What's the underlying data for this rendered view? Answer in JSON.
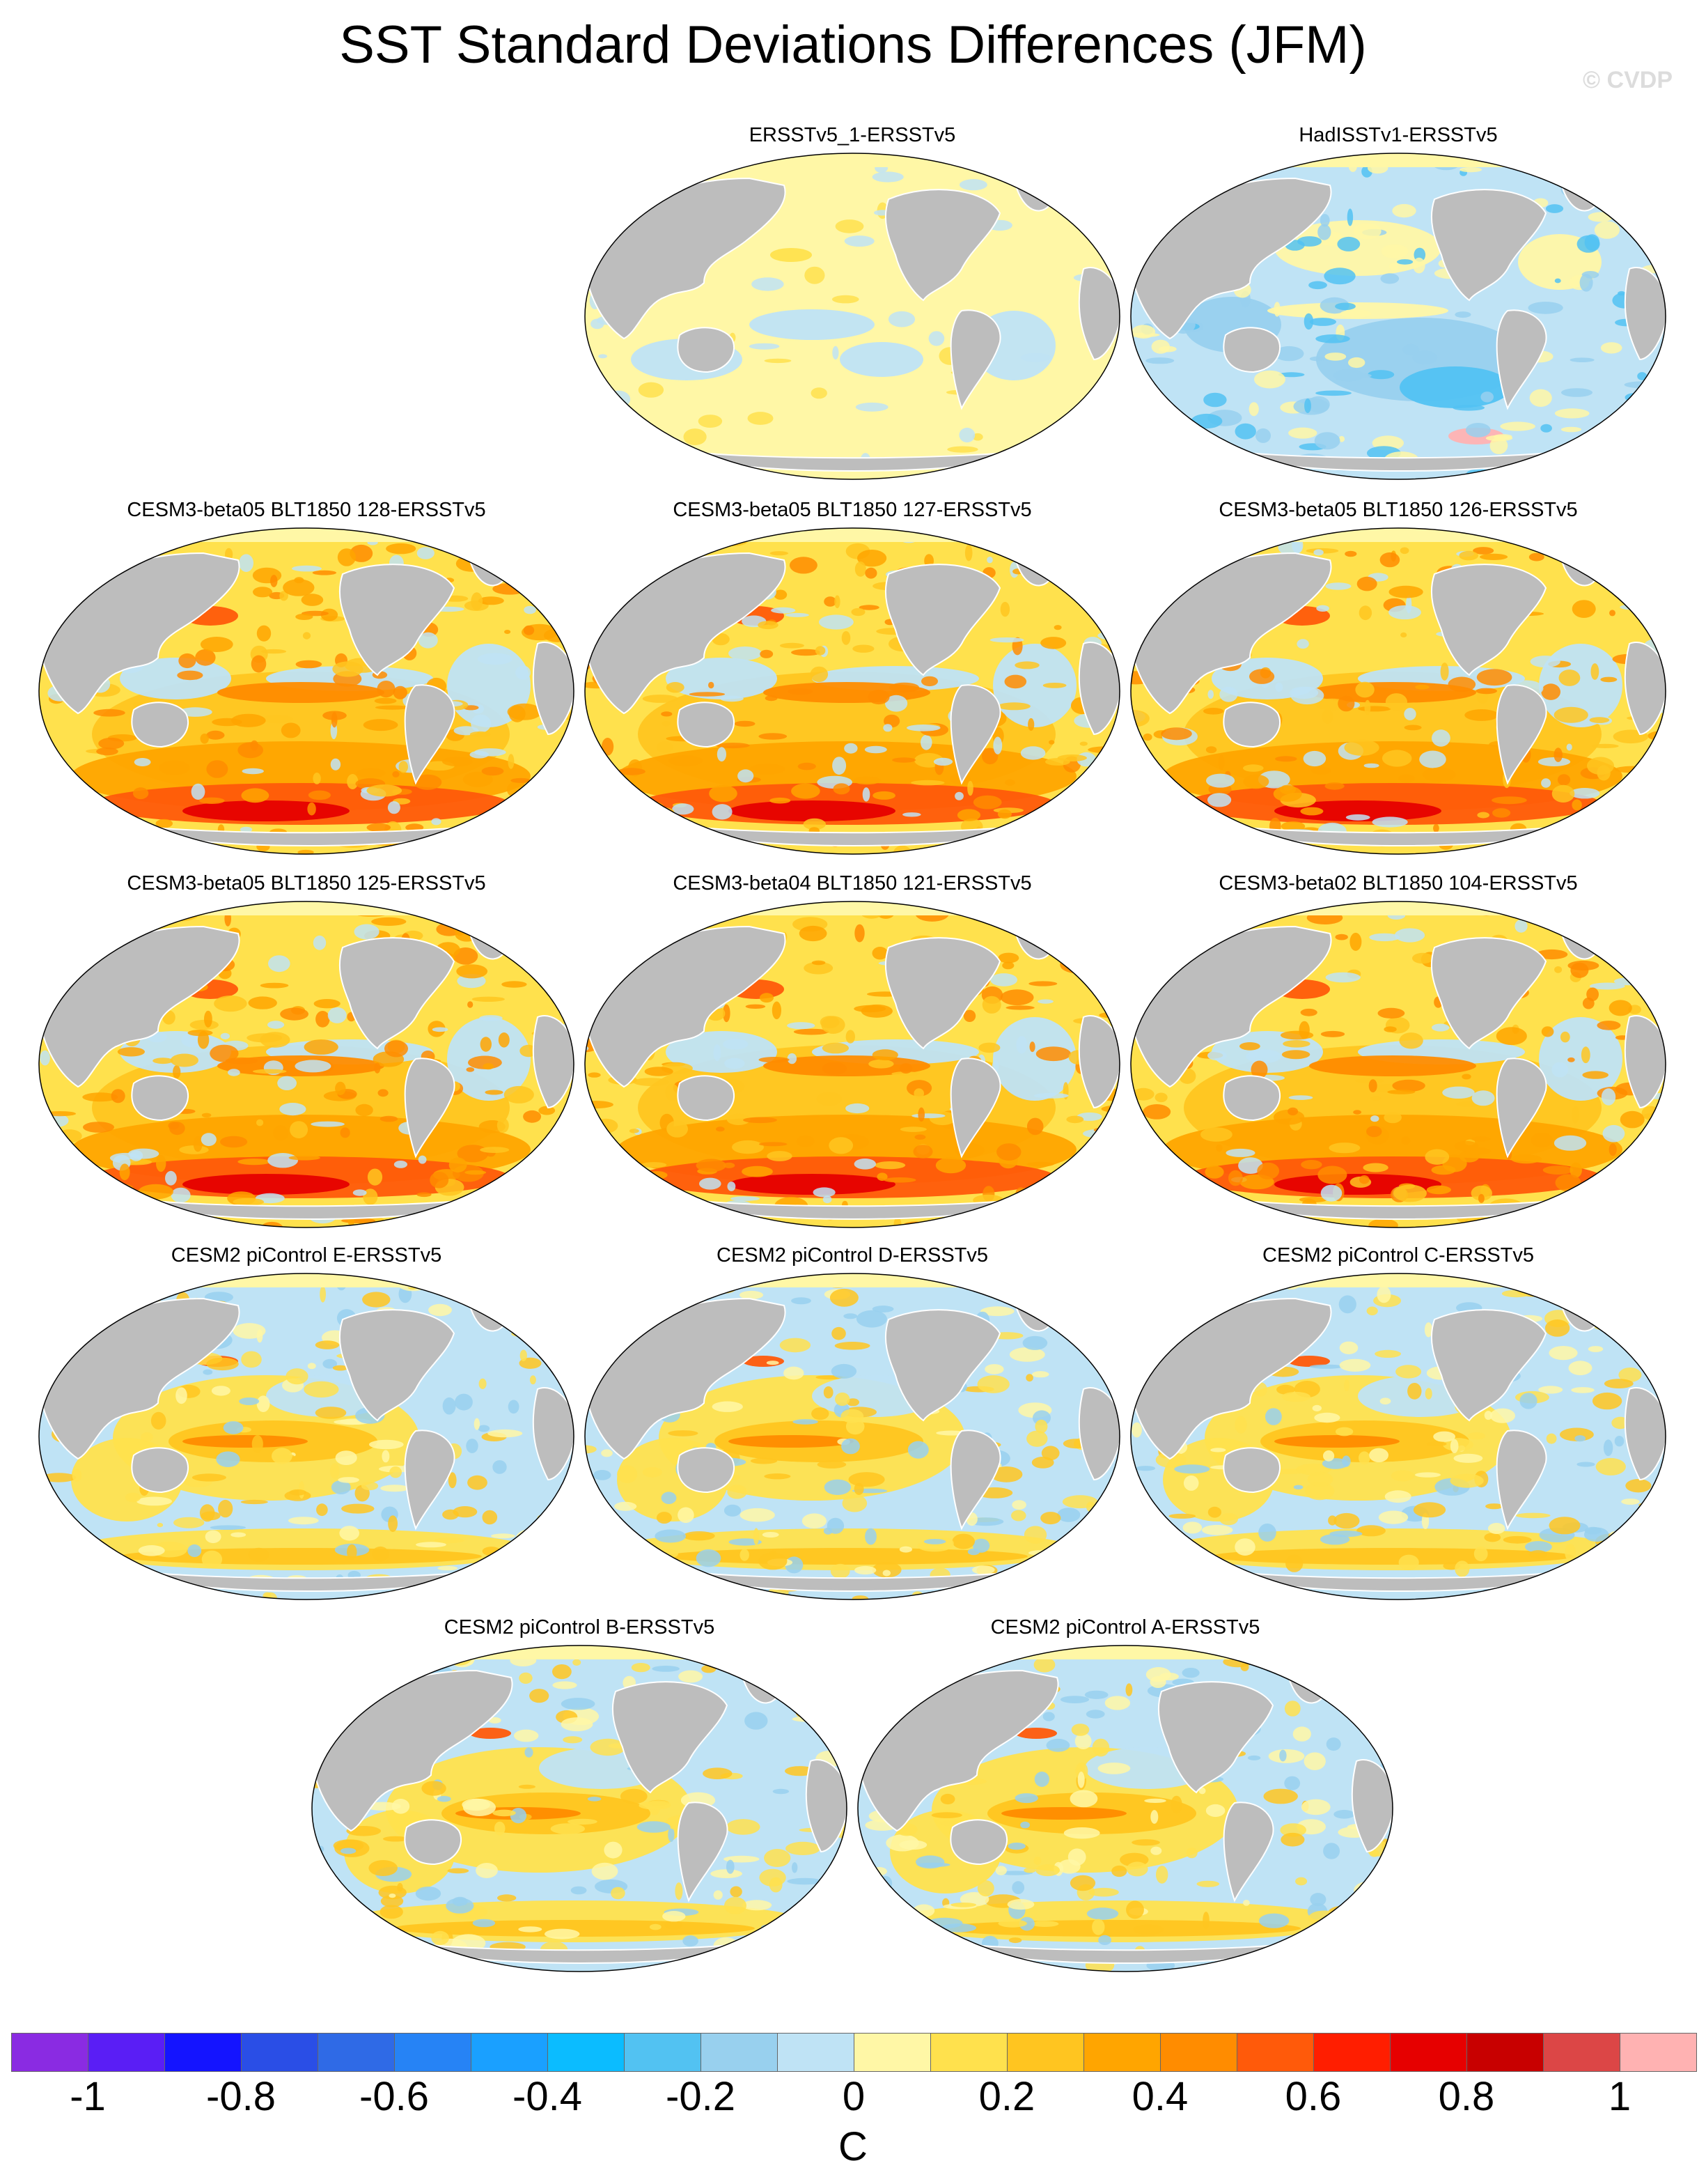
{
  "title": "SST Standard Deviations Differences (JFM)",
  "watermark": "© CVDP",
  "land_color": "#bdbdbd",
  "panels": [
    {
      "label": "ERSSTv5_1-ERSSTv5",
      "pattern": "near-zero"
    },
    {
      "label": "HadISSTv1-ERSSTv5",
      "pattern": "mostly-negative"
    },
    {
      "label": "CESM3-beta05 BLT1850 128-ERSSTv5",
      "pattern": "strong-positive-southern-ocean"
    },
    {
      "label": "CESM3-beta05 BLT1850 127-ERSSTv5",
      "pattern": "strong-positive-southern-ocean"
    },
    {
      "label": "CESM3-beta05 BLT1850 126-ERSSTv5",
      "pattern": "strong-positive-southern-ocean"
    },
    {
      "label": "CESM3-beta05 BLT1850 125-ERSSTv5",
      "pattern": "strong-positive-southern-ocean"
    },
    {
      "label": "CESM3-beta04 BLT1850 121-ERSSTv5",
      "pattern": "strong-positive-southern-ocean"
    },
    {
      "label": "CESM3-beta02 BLT1850 104-ERSSTv5",
      "pattern": "strong-positive-southern-ocean"
    },
    {
      "label": "CESM2 piControl E-ERSSTv5",
      "pattern": "positive-equatorial-pacific"
    },
    {
      "label": "CESM2 piControl D-ERSSTv5",
      "pattern": "positive-equatorial-pacific"
    },
    {
      "label": "CESM2 piControl C-ERSSTv5",
      "pattern": "positive-equatorial-pacific"
    },
    {
      "label": "CESM2 piControl B-ERSSTv5",
      "pattern": "positive-equatorial-pacific"
    },
    {
      "label": "CESM2 piControl A-ERSSTv5",
      "pattern": "positive-equatorial-pacific"
    }
  ],
  "colorbar": {
    "units": "C",
    "colors": [
      "#8a2be2",
      "#5a1ef5",
      "#1414ff",
      "#2a4ee6",
      "#2f6ae6",
      "#2683f5",
      "#1aa0ff",
      "#0bbcff",
      "#52c2f2",
      "#98d0ee",
      "#bfe3f5",
      "#fff7a6",
      "#ffe14d",
      "#ffc520",
      "#ffa500",
      "#ff8c00",
      "#ff5a0a",
      "#ff1e00",
      "#e60000",
      "#c80000",
      "#dc4646",
      "#ffb2b2"
    ],
    "tick_values": [
      -1,
      -0.8,
      -0.6,
      -0.4,
      -0.2,
      0,
      0.2,
      0.4,
      0.6,
      0.8,
      1
    ],
    "tick_labels": [
      "-1",
      "-0.8",
      "-0.6",
      "-0.4",
      "-0.2",
      "0",
      "0.2",
      "0.4",
      "0.6",
      "0.8",
      "1"
    ]
  }
}
